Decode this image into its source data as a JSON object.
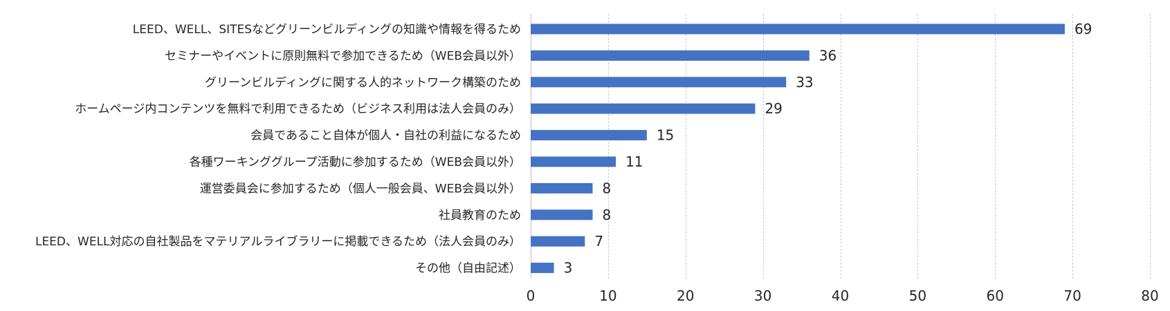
{
  "chart_data": {
    "type": "bar",
    "orientation": "horizontal",
    "categories": [
      "LEED、WELL、SITESなどグリーンビルディングの知識や情報を得るため",
      "セミナーやイベントに原則無料で参加できるため（WEB会員以外）",
      "グリーンビルディングに関する人的ネットワーク構築のため",
      "ホームページ内コンテンツを無料で利用できるため（ビジネス利用は法人会員のみ）",
      "会員であること自体が個人・自社の利益になるため",
      "各種ワーキンググループ活動に参加するため（WEB会員以外）",
      "運営委員会に参加するため（個人一般会員、WEB会員以外）",
      "社員教育のため",
      "LEED、WELL対応の自社製品をマテリアルライブラリーに掲載できるため（法人会員のみ）",
      "その他（自由記述）"
    ],
    "values": [
      69,
      36,
      33,
      29,
      15,
      11,
      8,
      8,
      7,
      3
    ],
    "xlim": [
      0,
      80
    ],
    "x_ticks": [
      0,
      10,
      20,
      30,
      40,
      50,
      60,
      70,
      80
    ],
    "grid": "vertical dashed",
    "bar_color": "#4472c4",
    "data_labels": true,
    "title": "",
    "xlabel": "",
    "ylabel": ""
  }
}
